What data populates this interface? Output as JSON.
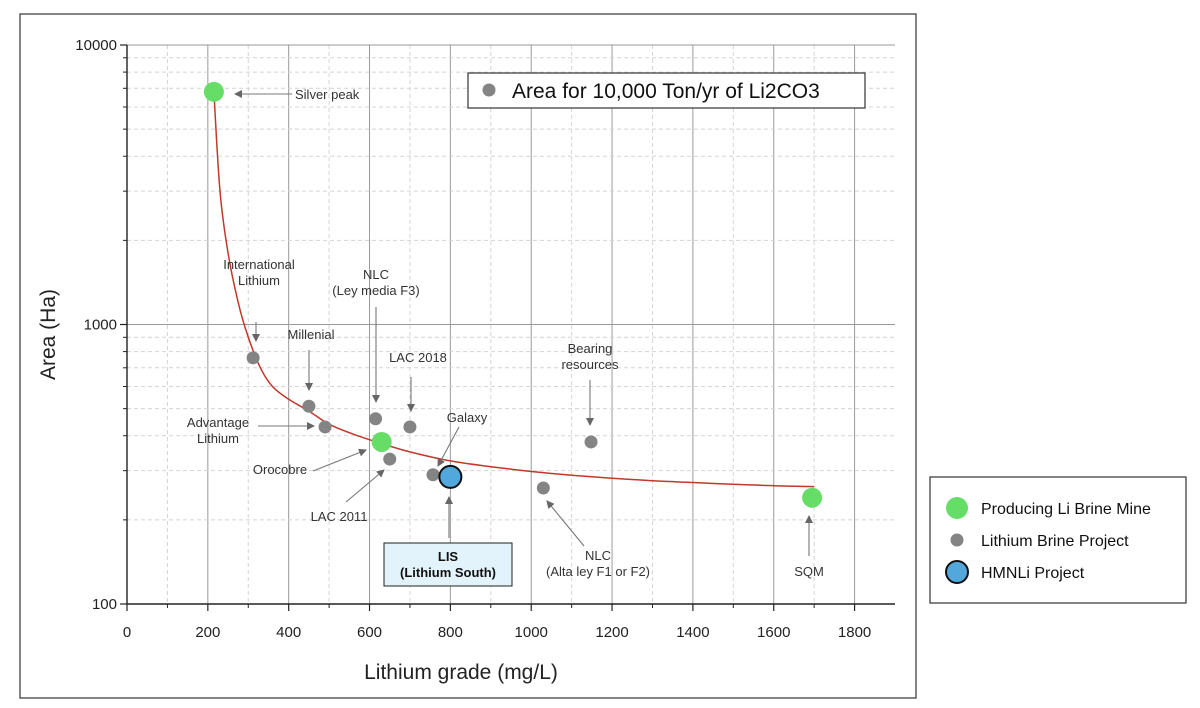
{
  "chart_data": {
    "type": "scatter",
    "xlabel": "Lithium grade (mg/L)",
    "ylabel": "Area (Ha)",
    "xlim": [
      0,
      1900
    ],
    "ylim": [
      100,
      10000
    ],
    "yscale": "log",
    "x_ticks": [
      0,
      200,
      400,
      600,
      800,
      1000,
      1200,
      1400,
      1600,
      1800
    ],
    "x_tick_labels": [
      "0",
      "200",
      "400",
      "600",
      "800",
      "1000",
      "1200",
      "1400",
      "1600",
      "1800"
    ],
    "y_ticks": [
      100,
      1000,
      10000
    ],
    "y_tick_labels": [
      "100",
      "1000",
      "10000"
    ],
    "inner_legend": "Area for 10,000 Ton/yr of Li2CO3",
    "series": [
      {
        "name": "Producing Li Brine Mine",
        "color": "#66dd66",
        "points": [
          {
            "x": 215,
            "y": 6800,
            "label": "Silver peak"
          },
          {
            "x": 630,
            "y": 380,
            "label": "Orocobre"
          },
          {
            "x": 1695,
            "y": 240,
            "label": "SQM"
          }
        ]
      },
      {
        "name": "Lithium Brine Project",
        "color": "#848484",
        "points": [
          {
            "x": 312,
            "y": 760,
            "label": "International Lithium"
          },
          {
            "x": 450,
            "y": 510,
            "label": "Millenial"
          },
          {
            "x": 490,
            "y": 430,
            "label": "Advantage Lithium"
          },
          {
            "x": 615,
            "y": 460,
            "label": "NLC (Ley media F3)"
          },
          {
            "x": 700,
            "y": 430,
            "label": "LAC 2018"
          },
          {
            "x": 650,
            "y": 330,
            "label": "LAC 2011"
          },
          {
            "x": 757,
            "y": 290,
            "label": "Galaxy"
          },
          {
            "x": 1030,
            "y": 260,
            "label": "NLC (Alta ley F1 or F2)"
          },
          {
            "x": 1148,
            "y": 380,
            "label": "Bearing resources"
          }
        ]
      },
      {
        "name": "HMNLi Project",
        "color": "#52a8dc",
        "points": [
          {
            "x": 800,
            "y": 285,
            "label": "LIS (Lithium South)"
          }
        ]
      }
    ],
    "trend_line": {
      "color": "#c0392b",
      "x": [
        215,
        230,
        250,
        275,
        300,
        330,
        360,
        400,
        450,
        500,
        560,
        630,
        700,
        800,
        900,
        1000,
        1100,
        1200,
        1300,
        1400,
        1500,
        1600,
        1700
      ],
      "y": [
        6800,
        3000,
        1800,
        1200,
        900,
        700,
        600,
        540,
        490,
        440,
        405,
        375,
        350,
        325,
        310,
        298,
        289,
        282,
        276,
        272,
        268,
        265,
        263
      ]
    },
    "annotations": [
      {
        "lines": [
          "Silver peak"
        ],
        "bold": false,
        "boxed": false
      },
      {
        "lines": [
          "International",
          "Lithium"
        ],
        "bold": false,
        "boxed": false
      },
      {
        "lines": [
          "NLC",
          "(Ley media F3)"
        ],
        "bold": false,
        "boxed": false
      },
      {
        "lines": [
          "Millenial"
        ],
        "bold": false,
        "boxed": false
      },
      {
        "lines": [
          "LAC 2018"
        ],
        "bold": false,
        "boxed": false
      },
      {
        "lines": [
          "Bearing",
          "resources"
        ],
        "bold": false,
        "boxed": false
      },
      {
        "lines": [
          "Advantage",
          "Lithium"
        ],
        "bold": false,
        "boxed": false
      },
      {
        "lines": [
          "Galaxy"
        ],
        "bold": false,
        "boxed": false
      },
      {
        "lines": [
          "Orocobre"
        ],
        "bold": false,
        "boxed": false
      },
      {
        "lines": [
          "LAC 2011"
        ],
        "bold": false,
        "boxed": false
      },
      {
        "lines": [
          "LIS",
          "(Lithium South)"
        ],
        "bold": true,
        "boxed": true
      },
      {
        "lines": [
          "NLC",
          "(Alta ley F1 or F2)"
        ],
        "bold": false,
        "boxed": false
      },
      {
        "lines": [
          "SQM"
        ],
        "bold": false,
        "boxed": false
      }
    ],
    "legend": [
      {
        "label": "Producing Li Brine Mine",
        "color": "#66dd66"
      },
      {
        "label": "Lithium Brine Project",
        "color": "#848484"
      },
      {
        "label": "HMNLi Project",
        "color": "#52a8dc"
      }
    ]
  }
}
